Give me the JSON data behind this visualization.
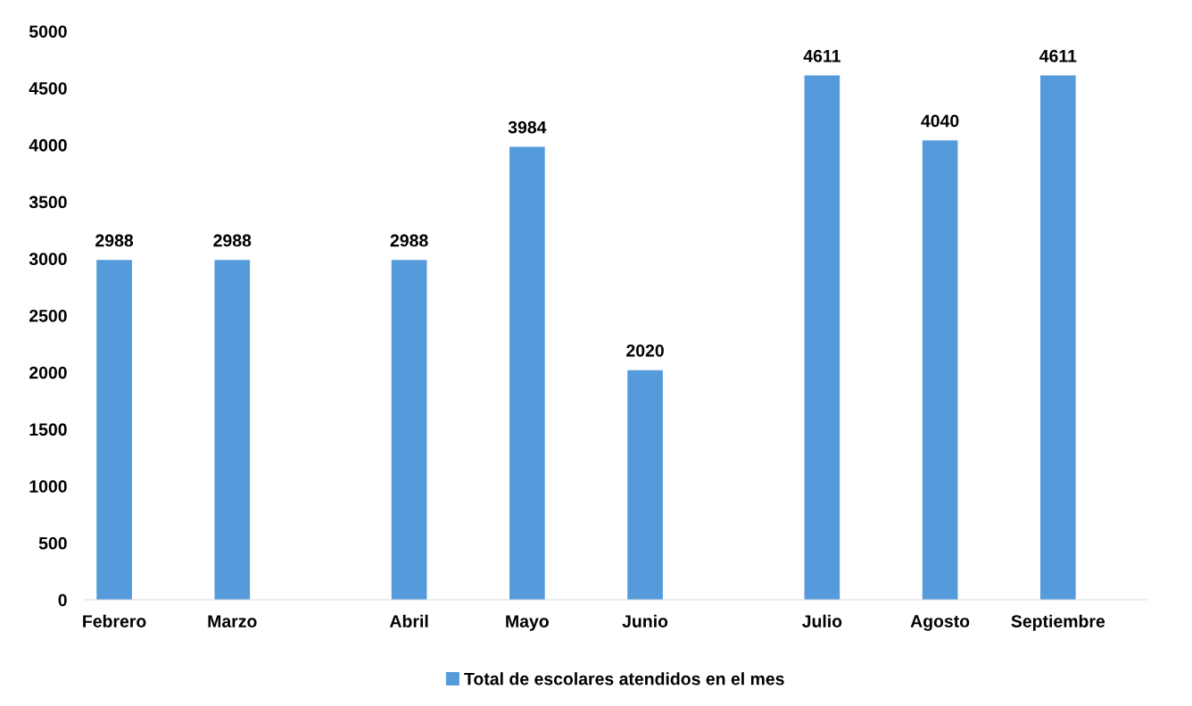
{
  "chart_data": {
    "type": "bar",
    "categories": [
      "Febrero",
      null,
      "Marzo",
      null,
      null,
      "Abril",
      null,
      "Mayo",
      null,
      "Junio",
      null,
      null,
      "Julio",
      null,
      "Agosto",
      null,
      "Septiembre",
      null
    ],
    "series": [
      {
        "name": "Total de escolares atendidos en el mes",
        "color": "#559bdc",
        "values": [
          2988,
          null,
          2988,
          null,
          null,
          2988,
          null,
          3984,
          null,
          2020,
          null,
          null,
          4611,
          null,
          4040,
          null,
          4611,
          null
        ]
      }
    ],
    "ylim": [
      0,
      5000
    ],
    "yticks": [
      0,
      500,
      1000,
      1500,
      2000,
      2500,
      3000,
      3500,
      4000,
      4500,
      5000
    ],
    "data_labels": true,
    "grid": false,
    "legend": "bottom"
  }
}
